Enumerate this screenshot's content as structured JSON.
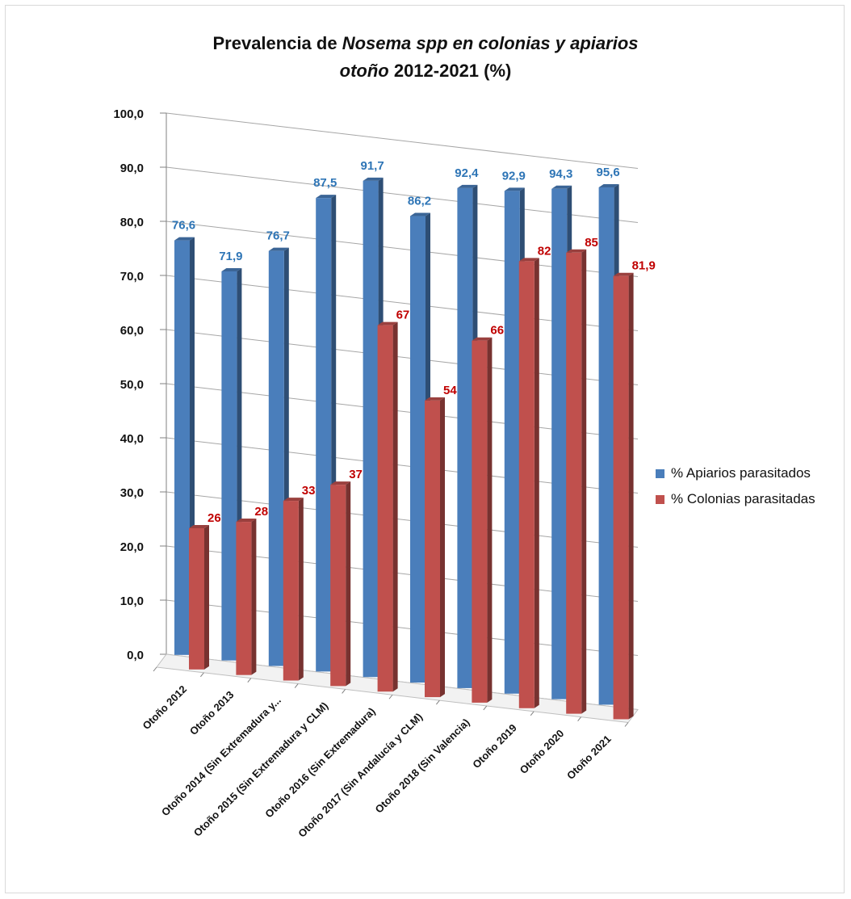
{
  "title": {
    "line1_plain": "Prevalencia de ",
    "line1_italic": "Nosema spp en colonias y apiarios",
    "line2_italic": "otoño",
    "line2_plain": " 2012-2021  (%)"
  },
  "chart_data": {
    "type": "bar",
    "title": "Prevalencia de Nosema spp en colonias y apiarios otoño 2012-2021 (%)",
    "categories": [
      "Otoño 2012",
      "Otoño 2013",
      "Otoño 2014 (Sin Extremadura y...",
      "Otoño 2015 (Sin Extremadura y CLM)",
      "Otoño 2016 (Sin Extremadura)",
      "Otoño 2017 (Sin Andalucía y CLM)",
      "Otoño 2018 (Sin Valencia)",
      "Otoño 2019",
      "Otoño 2020",
      "Otoño 2021"
    ],
    "series": [
      {
        "name": "% Apiarios parasitados",
        "color": "#4a7ebb",
        "values": [
          76.6,
          71.9,
          76.7,
          87.5,
          91.7,
          86.2,
          92.4,
          92.9,
          94.3,
          95.6
        ],
        "labels": [
          "76,6",
          "71,9",
          "76,7",
          "87,5",
          "91,7",
          "86,2",
          "92,4",
          "92,9",
          "94,3",
          "95,6"
        ]
      },
      {
        "name": "% Colonias parasitadas",
        "color": "#c0504d",
        "values": [
          26.1,
          28.3,
          33.2,
          37.2,
          67.7,
          54.8,
          66.9,
          82.6,
          85.2,
          81.9
        ],
        "labels": [
          "26,1",
          "28,3",
          "33,2",
          "37,2",
          "67,7",
          "54,8",
          "66,9",
          "82,6",
          "85,2",
          "81,9"
        ]
      }
    ],
    "ylim": [
      0,
      100
    ],
    "yticks": [
      "0,0",
      "10,0",
      "20,0",
      "30,0",
      "40,0",
      "50,0",
      "60,0",
      "70,0",
      "80,0",
      "90,0",
      "100,0"
    ],
    "grid": true,
    "legend": "right",
    "style": "3d-clustered-columns"
  }
}
